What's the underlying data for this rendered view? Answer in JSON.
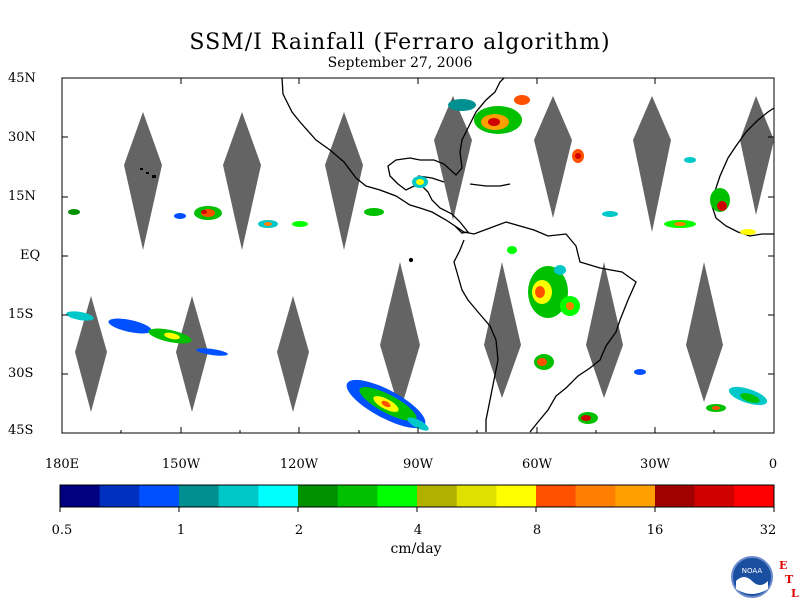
{
  "title": "SSM/I Rainfall (Ferraro algorithm)",
  "subtitle": "September 27, 2006",
  "lat_labels": [
    "45N",
    "30N",
    "15N",
    "EQ",
    "15S",
    "30S",
    "45S"
  ],
  "lon_labels": [
    "180E",
    "150W",
    "120W",
    "90W",
    "60W",
    "30W",
    "0"
  ],
  "colorbar": {
    "units": "cm/day",
    "tick_labels": [
      "0.5",
      "1",
      "2",
      "4",
      "8",
      "16",
      "32"
    ],
    "colors": [
      "#000080",
      "#0030c0",
      "#0050ff",
      "#009090",
      "#00c8c8",
      "#00ffff",
      "#009000",
      "#00c000",
      "#00ff00",
      "#b0b000",
      "#e0e000",
      "#ffff00",
      "#ff5000",
      "#ff8000",
      "#ffa000",
      "#a00000",
      "#d00000",
      "#ff0000"
    ]
  },
  "logo": {
    "text": "NOAA",
    "letters": [
      "E",
      "T",
      "L"
    ]
  }
}
